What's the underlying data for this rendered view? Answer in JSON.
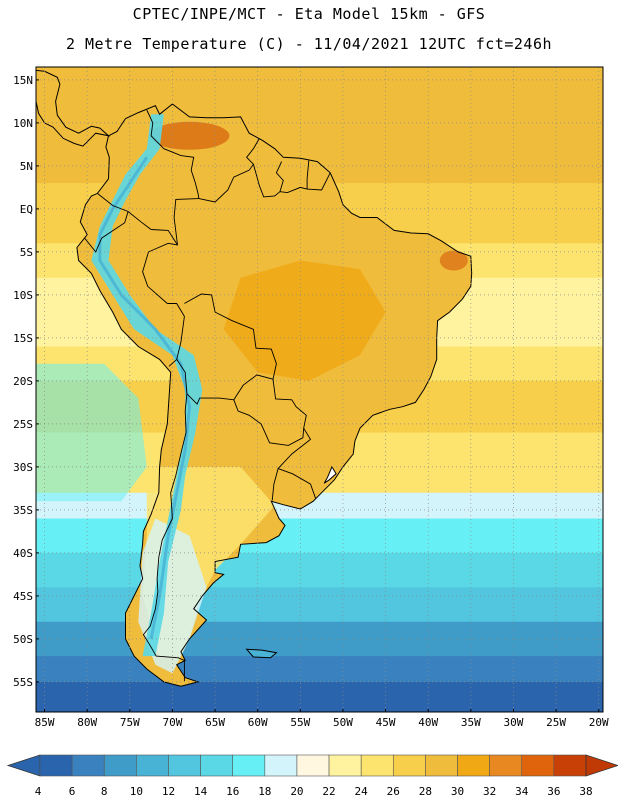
{
  "header": {
    "line1": "CPTEC/INPE/MCT -  Eta Model 15km - GFS",
    "line2": "2 Metre Temperature (C) - 11/04/2021 12UTC fct=246h"
  },
  "map": {
    "lon_range": [
      -86,
      -19.5
    ],
    "lat_range": [
      -58.5,
      16.5
    ],
    "lat_ticks": [
      {
        "value": 15,
        "label": "15N"
      },
      {
        "value": 10,
        "label": "10N"
      },
      {
        "value": 5,
        "label": "5N"
      },
      {
        "value": 0,
        "label": "EQ"
      },
      {
        "value": -5,
        "label": "5S"
      },
      {
        "value": -10,
        "label": "10S"
      },
      {
        "value": -15,
        "label": "15S"
      },
      {
        "value": -20,
        "label": "20S"
      },
      {
        "value": -25,
        "label": "25S"
      },
      {
        "value": -30,
        "label": "30S"
      },
      {
        "value": -35,
        "label": "35S"
      },
      {
        "value": -40,
        "label": "40S"
      },
      {
        "value": -45,
        "label": "45S"
      },
      {
        "value": -50,
        "label": "50S"
      },
      {
        "value": -55,
        "label": "55S"
      }
    ],
    "lon_ticks": [
      {
        "value": -85,
        "label": "85W"
      },
      {
        "value": -80,
        "label": "80W"
      },
      {
        "value": -75,
        "label": "75W"
      },
      {
        "value": -70,
        "label": "70W"
      },
      {
        "value": -65,
        "label": "65W"
      },
      {
        "value": -60,
        "label": "60W"
      },
      {
        "value": -55,
        "label": "55W"
      },
      {
        "value": -50,
        "label": "50W"
      },
      {
        "value": -45,
        "label": "45W"
      },
      {
        "value": -40,
        "label": "40W"
      },
      {
        "value": -35,
        "label": "35W"
      },
      {
        "value": -30,
        "label": "30W"
      },
      {
        "value": -25,
        "label": "25W"
      },
      {
        "value": -20,
        "label": "20W"
      }
    ]
  },
  "colorbar": {
    "labels": [
      "4",
      "6",
      "8",
      "10",
      "12",
      "14",
      "16",
      "18",
      "20",
      "22",
      "24",
      "26",
      "28",
      "30",
      "32",
      "34",
      "36",
      "38"
    ],
    "colors": [
      "#2a64ac",
      "#3a82bf",
      "#3f9cc9",
      "#49b3d6",
      "#52c6df",
      "#5ad8e6",
      "#66f0f6",
      "#d4f4fb",
      "#fff7e0",
      "#fff3a0",
      "#fde46e",
      "#f8cf4a",
      "#f0bc3c",
      "#f0a814",
      "#e88820",
      "#e0640c",
      "#c84006",
      "#c03a06"
    ]
  },
  "shapes": {
    "south_america": [
      [
        -77.5,
        8.5
      ],
      [
        -76.5,
        9
      ],
      [
        -75.5,
        10.5
      ],
      [
        -74,
        11.2
      ],
      [
        -72,
        12
      ],
      [
        -71.5,
        11
      ],
      [
        -70,
        12.2
      ],
      [
        -68,
        10.7
      ],
      [
        -66,
        10.6
      ],
      [
        -64,
        10.6
      ],
      [
        -62,
        10.7
      ],
      [
        -61,
        8.8
      ],
      [
        -59.5,
        8
      ],
      [
        -58,
        7
      ],
      [
        -57,
        6
      ],
      [
        -55,
        5.9
      ],
      [
        -53,
        5.5
      ],
      [
        -51.5,
        4.2
      ],
      [
        -50.5,
        2
      ],
      [
        -50,
        0.5
      ],
      [
        -49,
        -0.5
      ],
      [
        -48,
        -1
      ],
      [
        -46,
        -1
      ],
      [
        -44,
        -2.5
      ],
      [
        -42,
        -2.8
      ],
      [
        -40,
        -2.9
      ],
      [
        -38.5,
        -3.7
      ],
      [
        -36.5,
        -5
      ],
      [
        -35,
        -5.5
      ],
      [
        -34.9,
        -7.5
      ],
      [
        -35,
        -9
      ],
      [
        -36,
        -10.5
      ],
      [
        -37.5,
        -12
      ],
      [
        -38.9,
        -13
      ],
      [
        -39,
        -15
      ],
      [
        -39,
        -17.5
      ],
      [
        -39.7,
        -19.5
      ],
      [
        -40.5,
        -21
      ],
      [
        -41.5,
        -22.5
      ],
      [
        -43,
        -23
      ],
      [
        -44.5,
        -23.3
      ],
      [
        -46.5,
        -24
      ],
      [
        -48,
        -25.5
      ],
      [
        -48.6,
        -27
      ],
      [
        -48.8,
        -28.5
      ],
      [
        -50,
        -30
      ],
      [
        -51,
        -31.5
      ],
      [
        -52.5,
        -33
      ],
      [
        -53.5,
        -34
      ],
      [
        -55,
        -34.9
      ],
      [
        -57,
        -34.4
      ],
      [
        -58.4,
        -34
      ],
      [
        -57.5,
        -36
      ],
      [
        -56.8,
        -36.8
      ],
      [
        -57.5,
        -38
      ],
      [
        -59,
        -38.8
      ],
      [
        -62,
        -39
      ],
      [
        -62.3,
        -40.5
      ],
      [
        -65,
        -41
      ],
      [
        -65,
        -42.3
      ],
      [
        -64,
        -42.5
      ],
      [
        -65.2,
        -43.5
      ],
      [
        -66.5,
        -45
      ],
      [
        -67.5,
        -46.5
      ],
      [
        -66,
        -47.8
      ],
      [
        -68,
        -50
      ],
      [
        -69,
        -51.5
      ],
      [
        -68.5,
        -52.5
      ],
      [
        -69.5,
        -53
      ],
      [
        -68.5,
        -54.5
      ],
      [
        -67,
        -55
      ],
      [
        -69,
        -55.5
      ],
      [
        -71,
        -55
      ],
      [
        -73,
        -53.5
      ],
      [
        -74.5,
        -52
      ],
      [
        -75.5,
        -50
      ],
      [
        -75.5,
        -47
      ],
      [
        -74.5,
        -45
      ],
      [
        -73.5,
        -43
      ],
      [
        -73.8,
        -41.5
      ],
      [
        -73.5,
        -39
      ],
      [
        -73.4,
        -37.5
      ],
      [
        -72.5,
        -35.5
      ],
      [
        -71.6,
        -33
      ],
      [
        -71.5,
        -30
      ],
      [
        -71.3,
        -28
      ],
      [
        -70.6,
        -25
      ],
      [
        -70.4,
        -22
      ],
      [
        -70.2,
        -19
      ],
      [
        -71.5,
        -17.5
      ],
      [
        -74,
        -16
      ],
      [
        -76,
        -14
      ],
      [
        -77,
        -12
      ],
      [
        -78.5,
        -9.5
      ],
      [
        -79.5,
        -7.5
      ],
      [
        -81,
        -6
      ],
      [
        -81.2,
        -4.5
      ],
      [
        -80,
        -3
      ],
      [
        -80.8,
        -1.5
      ],
      [
        -80.2,
        0.5
      ],
      [
        -79.5,
        1.5
      ],
      [
        -78.8,
        1.8
      ],
      [
        -77.5,
        3.5
      ],
      [
        -77.4,
        6
      ],
      [
        -77.8,
        7.2
      ],
      [
        -77.5,
        8.5
      ]
    ],
    "central_america": [
      [
        -77.5,
        8.5
      ],
      [
        -78.5,
        9.4
      ],
      [
        -79.5,
        9.6
      ],
      [
        -81,
        8.8
      ],
      [
        -82.5,
        9.5
      ],
      [
        -83.5,
        10.9
      ],
      [
        -83.7,
        12.5
      ],
      [
        -83.2,
        14.5
      ],
      [
        -83.5,
        15.3
      ],
      [
        -85,
        16
      ],
      [
        -86,
        16.1
      ],
      [
        -86,
        12.5
      ],
      [
        -85.7,
        11.1
      ],
      [
        -85,
        10
      ],
      [
        -84,
        9.5
      ],
      [
        -82.8,
        8.2
      ],
      [
        -81.5,
        7.6
      ],
      [
        -80.5,
        7.3
      ],
      [
        -80,
        7.8
      ],
      [
        -79,
        8.8
      ],
      [
        -77.5,
        8.5
      ]
    ],
    "falklands": [
      [
        -61.3,
        -51.2
      ],
      [
        -59.5,
        -51.3
      ],
      [
        -57.8,
        -51.6
      ],
      [
        -58.5,
        -52.2
      ],
      [
        -60.5,
        -52.1
      ],
      [
        -61.3,
        -51.2
      ]
    ],
    "lagoa": [
      [
        -51.3,
        -30
      ],
      [
        -50.8,
        -30.8
      ],
      [
        -51.6,
        -31.5
      ],
      [
        -52.2,
        -31.9
      ],
      [
        -51.8,
        -31.2
      ],
      [
        -51.3,
        -30
      ]
    ],
    "borders": [
      [
        [
          -73,
          11.5
        ],
        [
          -72.3,
          10
        ],
        [
          -72.5,
          8.5
        ],
        [
          -71,
          7
        ],
        [
          -69,
          6.2
        ],
        [
          -67.5,
          6
        ],
        [
          -67.8,
          4.5
        ],
        [
          -67.3,
          3
        ],
        [
          -67,
          1.8
        ],
        [
          -66.9,
          1.2
        ]
      ],
      [
        [
          -66.9,
          1.2
        ],
        [
          -65,
          0.8
        ],
        [
          -63.5,
          2.2
        ],
        [
          -62.8,
          3.7
        ],
        [
          -61,
          4.5
        ],
        [
          -60.5,
          5.2
        ],
        [
          -61.3,
          6
        ],
        [
          -60.5,
          7
        ],
        [
          -59.8,
          8.2
        ]
      ],
      [
        [
          -60.5,
          5.2
        ],
        [
          -59.8,
          2.7
        ],
        [
          -59.3,
          1.4
        ],
        [
          -58,
          1.5
        ],
        [
          -57.4,
          2.0
        ]
      ],
      [
        [
          -57.4,
          2.0
        ],
        [
          -57,
          3.3
        ],
        [
          -57.8,
          4.2
        ],
        [
          -57.2,
          5.5
        ]
      ],
      [
        [
          -57.4,
          2.0
        ],
        [
          -56.5,
          1.9
        ],
        [
          -55,
          2.5
        ],
        [
          -54.2,
          2.3
        ],
        [
          -54.2,
          3.5
        ],
        [
          -54,
          5.6
        ]
      ],
      [
        [
          -54.2,
          2.3
        ],
        [
          -52.5,
          2.2
        ],
        [
          -51.5,
          4.2
        ]
      ],
      [
        [
          -66.9,
          1.2
        ],
        [
          -69.6,
          1.1
        ],
        [
          -69.8,
          -1
        ],
        [
          -69.4,
          -4.2
        ],
        [
          -70.5,
          -4
        ],
        [
          -72.8,
          -5
        ],
        [
          -73.5,
          -7.3
        ],
        [
          -72.9,
          -9
        ],
        [
          -70.6,
          -11
        ]
      ],
      [
        [
          -69.4,
          -4.2
        ],
        [
          -70.5,
          -2.5
        ],
        [
          -72.5,
          -2.4
        ],
        [
          -73.7,
          -1.5
        ],
        [
          -75.2,
          -0.3
        ],
        [
          -77,
          0.4
        ],
        [
          -78.8,
          1.8
        ]
      ],
      [
        [
          -75.2,
          -0.3
        ],
        [
          -75.6,
          -1.6
        ],
        [
          -78.3,
          -3.4
        ],
        [
          -79,
          -5
        ],
        [
          -80.3,
          -3.4
        ]
      ],
      [
        [
          -70.6,
          -11
        ],
        [
          -69.5,
          -11
        ],
        [
          -68.6,
          -12.5
        ],
        [
          -69,
          -15.5
        ],
        [
          -69.5,
          -17.5
        ],
        [
          -70.4,
          -18.3
        ]
      ],
      [
        [
          -69.5,
          -17.5
        ],
        [
          -68.5,
          -19
        ],
        [
          -68.3,
          -21.5
        ],
        [
          -67.1,
          -22.7
        ],
        [
          -66.8,
          -22
        ],
        [
          -64.5,
          -22
        ],
        [
          -62.8,
          -22.2
        ],
        [
          -61.7,
          -20.5
        ],
        [
          -60.1,
          -19.3
        ],
        [
          -58.2,
          -19.8
        ],
        [
          -57.8,
          -18
        ],
        [
          -58.4,
          -16.3
        ],
        [
          -60.2,
          -16.2
        ],
        [
          -60.5,
          -14
        ],
        [
          -63,
          -13
        ],
        [
          -65,
          -12
        ],
        [
          -65.4,
          -10
        ],
        [
          -66.6,
          -9.9
        ],
        [
          -68.6,
          -11
        ]
      ],
      [
        [
          -68.3,
          -21.5
        ],
        [
          -68.5,
          -23.5
        ],
        [
          -68.4,
          -26
        ],
        [
          -68.9,
          -28
        ],
        [
          -69.6,
          -31
        ],
        [
          -70.2,
          -33
        ],
        [
          -70,
          -36
        ],
        [
          -71.2,
          -38.5
        ],
        [
          -71.6,
          -40.5
        ],
        [
          -71.8,
          -43
        ],
        [
          -71.7,
          -44.5
        ],
        [
          -72,
          -46.5
        ],
        [
          -72.6,
          -48.5
        ],
        [
          -73.4,
          -49.5
        ],
        [
          -72.6,
          -50.8
        ],
        [
          -71.9,
          -52
        ],
        [
          -69.3,
          -52.2
        ],
        [
          -68.6,
          -52.5
        ],
        [
          -68.6,
          -54.9
        ]
      ],
      [
        [
          -62.8,
          -22.2
        ],
        [
          -62.3,
          -23.5
        ],
        [
          -61,
          -24
        ],
        [
          -59.6,
          -25
        ],
        [
          -58.6,
          -27.2
        ],
        [
          -56.4,
          -27.5
        ],
        [
          -54.7,
          -26.6
        ],
        [
          -54.6,
          -25.5
        ],
        [
          -54.3,
          -24
        ],
        [
          -55.5,
          -23
        ],
        [
          -56,
          -22.2
        ],
        [
          -57.9,
          -22.1
        ],
        [
          -58.2,
          -19.8
        ]
      ],
      [
        [
          -54.6,
          -25.5
        ],
        [
          -53.8,
          -26.8
        ],
        [
          -56,
          -28.5
        ],
        [
          -57.6,
          -30.2
        ],
        [
          -55.9,
          -30.8
        ],
        [
          -53.8,
          -32
        ],
        [
          -53.2,
          -33.7
        ]
      ],
      [
        [
          -57.6,
          -30.2
        ],
        [
          -58.1,
          -32
        ],
        [
          -58.3,
          -33.9
        ]
      ]
    ]
  }
}
